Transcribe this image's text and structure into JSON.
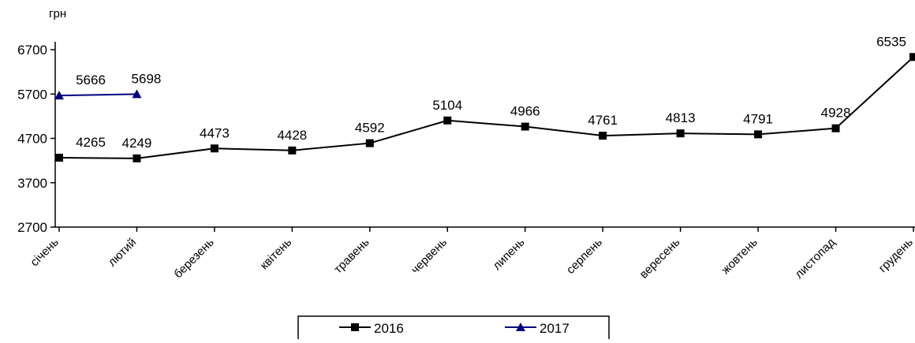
{
  "chart_data": {
    "type": "line",
    "y_label": "грн",
    "categories": [
      "січень",
      "лютий",
      "березень",
      "квітень",
      "травень",
      "червень",
      "липень",
      "серпень",
      "вересень",
      "жовтень",
      "листопад",
      "грудень"
    ],
    "series": [
      {
        "name": "2016",
        "color": "#000000",
        "marker": "square",
        "values": [
          4265,
          4249,
          4473,
          4428,
          4592,
          5104,
          4966,
          4761,
          4813,
          4791,
          4928,
          6535
        ]
      },
      {
        "name": "2017",
        "color": "#000080",
        "marker": "triangle",
        "values": [
          5666,
          5698,
          null,
          null,
          null,
          null,
          null,
          null,
          null,
          null,
          null,
          null
        ]
      }
    ],
    "ylim": [
      2700,
      6700
    ],
    "yticks": [
      2700,
      3700,
      4700,
      5700,
      6700
    ],
    "grid": false,
    "legend": "bottom"
  }
}
